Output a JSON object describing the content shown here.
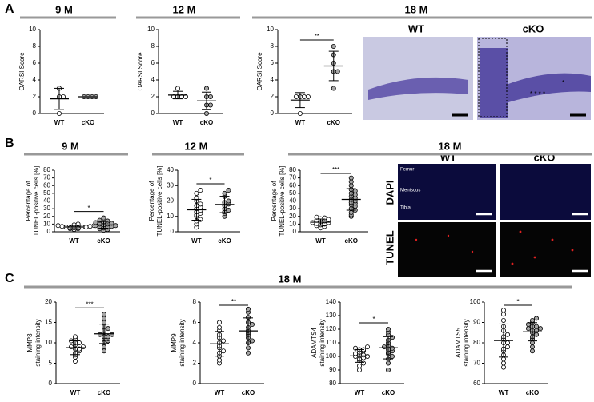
{
  "panel_labels": [
    "A",
    "B",
    "C"
  ],
  "histology": {
    "title": "18 M",
    "labels": [
      "WT",
      "cKO"
    ],
    "annotations": [
      "* * * *",
      "*"
    ]
  },
  "fluorescence": {
    "columns": [
      "WT",
      "cKO"
    ],
    "rows": [
      "DAPI",
      "TUNEL"
    ],
    "regions": [
      "Femur",
      "Meniscus",
      "Tibia"
    ]
  },
  "section_c_title": "18 M",
  "chart_data": [
    {
      "type": "dot",
      "title": "9 M",
      "ylabel": [
        "OARSI Score"
      ],
      "categories": [
        "WT",
        "cKO"
      ],
      "colors": [
        "#ffffff",
        "#a6a6a6"
      ],
      "values": [
        [
          3,
          2,
          2,
          0
        ],
        [
          2,
          2,
          2,
          2
        ]
      ],
      "ylim": [
        0,
        10
      ],
      "yticks": [
        0,
        2,
        4,
        6,
        8,
        10
      ]
    },
    {
      "type": "dot",
      "title": "12 M",
      "ylabel": [
        "OARSI Score"
      ],
      "categories": [
        "WT",
        "cKO"
      ],
      "colors": [
        "#ffffff",
        "#a6a6a6"
      ],
      "values": [
        [
          3,
          2,
          2,
          2,
          2
        ],
        [
          3,
          2,
          2,
          1,
          1,
          0
        ]
      ],
      "ylim": [
        0,
        10
      ],
      "yticks": [
        0,
        2,
        4,
        6,
        8,
        10
      ]
    },
    {
      "type": "dot",
      "ylabel": [
        "OARSI Score"
      ],
      "categories": [
        "WT",
        "cKO"
      ],
      "colors": [
        "#ffffff",
        "#a6a6a6"
      ],
      "values": [
        [
          2,
          2,
          2,
          2,
          0
        ],
        [
          8,
          7,
          6,
          5,
          5,
          3
        ]
      ],
      "ylim": [
        0,
        10
      ],
      "yticks": [
        0,
        2,
        4,
        6,
        8,
        10
      ],
      "annotation": "**"
    },
    {
      "type": "dot",
      "title": "9 M",
      "ylabel": [
        "Percentage of",
        "TUNEL-positive cells [%]"
      ],
      "categories": [
        "WT",
        "cKO"
      ],
      "colors": [
        "#ffffff",
        "#a6a6a6"
      ],
      "values": [
        [
          3,
          4,
          4,
          5,
          5,
          5,
          6,
          6,
          6,
          7,
          7,
          8,
          8,
          9,
          10
        ],
        [
          2,
          3,
          4,
          5,
          6,
          7,
          7,
          8,
          8,
          9,
          10,
          10,
          11,
          12,
          13,
          14,
          15,
          18
        ]
      ],
      "ylim": [
        0,
        80
      ],
      "yticks": [
        0,
        10,
        20,
        30,
        40,
        50,
        60,
        70,
        80
      ],
      "annotation": "*"
    },
    {
      "type": "dot",
      "title": "12 M",
      "ylabel": [
        "Percentage of",
        "TUNEL-positive cells [%]"
      ],
      "categories": [
        "WT",
        "cKO"
      ],
      "colors": [
        "#ffffff",
        "#a6a6a6"
      ],
      "values": [
        [
          3,
          5,
          7,
          8,
          10,
          11,
          12,
          13,
          14,
          15,
          16,
          17,
          18,
          20,
          22,
          25,
          27
        ],
        [
          10,
          12,
          13,
          14,
          15,
          17,
          18,
          19,
          20,
          23,
          25,
          27
        ]
      ],
      "ylim": [
        0,
        40
      ],
      "yticks": [
        0,
        10,
        20,
        30,
        40
      ],
      "annotation": "*"
    },
    {
      "type": "dot",
      "title": "18 M",
      "ylabel": [
        "Percentage of",
        "TUNEL-positive cells [%]"
      ],
      "categories": [
        "WT",
        "cKO"
      ],
      "colors": [
        "#ffffff",
        "#a6a6a6"
      ],
      "values": [
        [
          5,
          7,
          8,
          9,
          10,
          11,
          12,
          12,
          13,
          14,
          15,
          16,
          17,
          18,
          19
        ],
        [
          20,
          22,
          25,
          28,
          30,
          33,
          35,
          37,
          38,
          40,
          42,
          44,
          46,
          48,
          50,
          53,
          55,
          60,
          65,
          70
        ]
      ],
      "ylim": [
        0,
        80
      ],
      "yticks": [
        0,
        10,
        20,
        30,
        40,
        50,
        60,
        70,
        80
      ],
      "annotation": "***"
    },
    {
      "type": "dot",
      "ylabel": [
        "MMP3",
        "staining intensity"
      ],
      "categories": [
        "WT",
        "cKO"
      ],
      "colors": [
        "#ffffff",
        "#a6a6a6"
      ],
      "values": [
        [
          5.5,
          6.5,
          7,
          7.5,
          8,
          8.5,
          8.5,
          9,
          9,
          9.5,
          10,
          10,
          10.5,
          11,
          11.5
        ],
        [
          8,
          9,
          10,
          10.5,
          11,
          11,
          11.5,
          11.5,
          12,
          12,
          12.5,
          13,
          13.5,
          14,
          15,
          16,
          17
        ]
      ],
      "ylim": [
        0,
        20
      ],
      "yticks": [
        0,
        5,
        10,
        15,
        20
      ],
      "annotation": "***"
    },
    {
      "type": "dot",
      "ylabel": [
        "MMP9",
        "staining intensity"
      ],
      "categories": [
        "WT",
        "cKO"
      ],
      "colors": [
        "#ffffff",
        "#a6a6a6"
      ],
      "values": [
        [
          2,
          2.3,
          2.7,
          3,
          3.2,
          3.5,
          3.7,
          4,
          4.2,
          4.5,
          4.8,
          5.2,
          5.5,
          6
        ],
        [
          3,
          3.5,
          4,
          4.2,
          4.5,
          4.8,
          5,
          5.2,
          5.5,
          5.8,
          6,
          6.5,
          7,
          7.3
        ]
      ],
      "ylim": [
        0,
        8
      ],
      "yticks": [
        0,
        2,
        4,
        6,
        8
      ],
      "annotation": "**"
    },
    {
      "type": "dot",
      "ylabel": [
        "ADAMTS4",
        "staining intensity"
      ],
      "categories": [
        "WT",
        "cKO"
      ],
      "colors": [
        "#ffffff",
        "#a6a6a6"
      ],
      "values": [
        [
          90,
          93,
          95,
          97,
          98,
          99,
          100,
          100,
          101,
          101,
          102,
          103,
          104,
          105,
          105,
          106,
          107
        ],
        [
          90,
          95,
          98,
          100,
          102,
          103,
          104,
          105,
          106,
          107,
          108,
          110,
          112,
          114,
          116,
          118,
          120
        ]
      ],
      "ylim": [
        80,
        140
      ],
      "yticks": [
        80,
        90,
        100,
        110,
        120,
        130,
        140
      ],
      "annotation": "*"
    },
    {
      "type": "dot",
      "ylabel": [
        "ADAMTS5",
        "staining intensity"
      ],
      "categories": [
        "WT",
        "cKO"
      ],
      "colors": [
        "#ffffff",
        "#a6a6a6"
      ],
      "values": [
        [
          68,
          70,
          72,
          74,
          76,
          77,
          78,
          80,
          80,
          82,
          83,
          84,
          86,
          88,
          91,
          94,
          96
        ],
        [
          76,
          78,
          80,
          82,
          83,
          84,
          85,
          86,
          86,
          87,
          87,
          88,
          88,
          89,
          90,
          91,
          92
        ]
      ],
      "ylim": [
        60,
        100
      ],
      "yticks": [
        60,
        70,
        80,
        90,
        100
      ],
      "annotation": "*"
    }
  ]
}
